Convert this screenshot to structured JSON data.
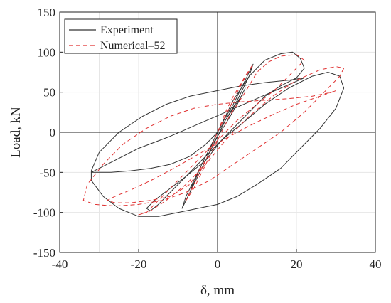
{
  "chart_data": {
    "type": "line",
    "xlabel": "δ, mm",
    "ylabel": "Load, kN",
    "xlim": [
      -40,
      40
    ],
    "ylim": [
      -150,
      150
    ],
    "xticks": [
      "-40",
      "-20",
      "0",
      "20",
      "40"
    ],
    "yticks": [
      "150",
      "100",
      "50",
      "0",
      "-50",
      "-100",
      "-150"
    ],
    "grid": true,
    "legend_position": "top-left",
    "series": [
      {
        "name": "Experiment",
        "color": "#333333",
        "dash": "solid",
        "x": [
          0,
          2,
          4,
          6,
          7,
          5,
          2,
          0,
          -2,
          -4,
          -6,
          -7,
          -5,
          -2,
          0,
          2,
          5,
          8,
          9,
          7,
          4,
          1,
          -2,
          -5,
          -8,
          -9,
          -7,
          -4,
          -1,
          1,
          4,
          8,
          12,
          16,
          19,
          21,
          22,
          20,
          16,
          12,
          8,
          4,
          0,
          -4,
          -8,
          -12,
          -15,
          -17,
          -18,
          -16,
          -12,
          -8,
          -3,
          1,
          6,
          12,
          18,
          24,
          28,
          31,
          32,
          30,
          26,
          21,
          16,
          10,
          5,
          0,
          -5,
          -10,
          -15,
          -20,
          -25,
          -29,
          -32,
          -32,
          -30,
          -25,
          -19,
          -13,
          -7,
          0,
          6,
          12,
          18,
          22,
          16,
          9,
          2,
          -5,
          -12,
          -20,
          -26,
          -30,
          -32,
          -31,
          -27,
          -22,
          -17,
          -12,
          -7,
          -3,
          0
        ],
        "y": [
          0,
          15,
          30,
          45,
          55,
          35,
          10,
          -5,
          -20,
          -40,
          -60,
          -75,
          -55,
          -25,
          -5,
          15,
          40,
          70,
          85,
          65,
          35,
          10,
          -20,
          -50,
          -80,
          -95,
          -75,
          -40,
          -10,
          10,
          40,
          70,
          90,
          98,
          100,
          92,
          80,
          68,
          58,
          45,
          25,
          5,
          -15,
          -35,
          -55,
          -75,
          -90,
          -98,
          -95,
          -85,
          -70,
          -55,
          -35,
          -10,
          10,
          35,
          55,
          70,
          75,
          70,
          55,
          30,
          5,
          -20,
          -45,
          -65,
          -80,
          -90,
          -95,
          -100,
          -105,
          -105,
          -95,
          -80,
          -60,
          -48,
          -25,
          0,
          20,
          35,
          45,
          52,
          58,
          62,
          65,
          68,
          55,
          40,
          25,
          10,
          -5,
          -20,
          -35,
          -45,
          -50,
          -50,
          -50,
          -48,
          -45,
          -40,
          -30,
          -15,
          0
        ]
      },
      {
        "name": "Numerical–52",
        "color": "#e03030",
        "dash": "dashed",
        "x": [
          0,
          2,
          4,
          7,
          9,
          6,
          3,
          0,
          -3,
          -6,
          -8,
          -6,
          -3,
          0,
          3,
          7,
          10,
          13,
          16,
          20,
          22,
          19,
          15,
          10,
          5,
          0,
          -5,
          -10,
          -15,
          -18,
          -20,
          -17,
          -13,
          -8,
          -3,
          2,
          8,
          14,
          20,
          26,
          30,
          32,
          31,
          27,
          22,
          16,
          10,
          4,
          -2,
          -8,
          -14,
          -20,
          -26,
          -31,
          -34,
          -33,
          -29,
          -24,
          -18,
          -12,
          -6,
          0,
          6,
          12,
          18,
          24,
          29,
          30,
          26,
          20,
          14,
          8,
          2,
          -4,
          -10,
          -16,
          -22,
          -26,
          -28,
          -26,
          -22,
          -17,
          -12,
          -7,
          -3,
          0
        ],
        "y": [
          0,
          25,
          45,
          70,
          85,
          60,
          30,
          0,
          -35,
          -65,
          -85,
          -70,
          -40,
          -10,
          20,
          50,
          75,
          88,
          95,
          97,
          90,
          75,
          55,
          35,
          15,
          -10,
          -35,
          -60,
          -85,
          -100,
          -103,
          -98,
          -85,
          -65,
          -40,
          -10,
          20,
          45,
          65,
          78,
          82,
          80,
          70,
          50,
          25,
          0,
          -20,
          -40,
          -60,
          -75,
          -85,
          -90,
          -92,
          -90,
          -85,
          -65,
          -40,
          -15,
          5,
          20,
          30,
          35,
          38,
          40,
          42,
          45,
          50,
          52,
          45,
          35,
          22,
          8,
          -8,
          -25,
          -42,
          -58,
          -72,
          -80,
          -85,
          -88,
          -88,
          -85,
          -80,
          -65,
          -35,
          0
        ]
      }
    ]
  }
}
